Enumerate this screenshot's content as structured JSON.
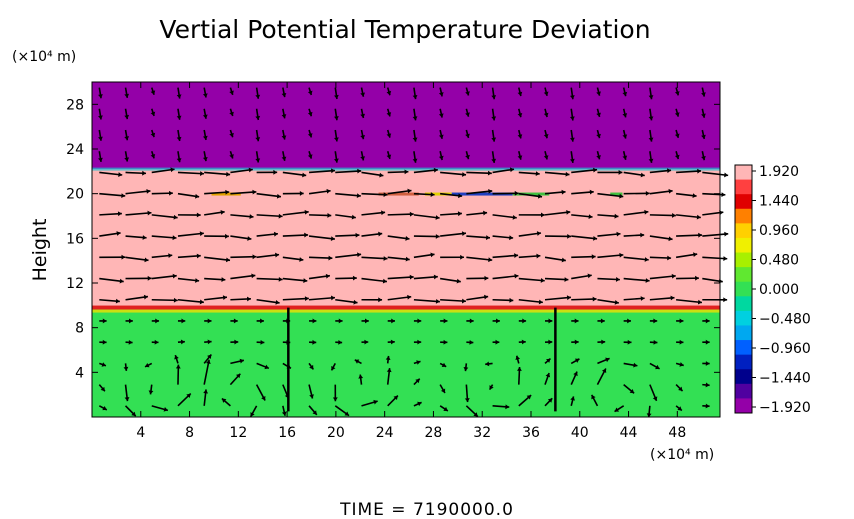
{
  "chart_data": {
    "type": "heatmap",
    "title": "Vertial Potential Temperature Deviation",
    "ylabel": "Height",
    "y_unit": "(×10⁴ m)",
    "x_unit": "(×10⁴ m)",
    "footer": "TIME = 7190000.0",
    "xlim": [
      0,
      51.5
    ],
    "ylim": [
      0,
      30
    ],
    "x_ticks": [
      4,
      8,
      12,
      16,
      20,
      24,
      28,
      32,
      36,
      40,
      44,
      48
    ],
    "y_ticks": [
      4,
      8,
      12,
      16,
      20,
      24,
      28
    ],
    "field_layers": [
      {
        "y_from": 22.2,
        "y_to": 30,
        "value": -1.92,
        "color": "#9400a8"
      },
      {
        "y_from": 9.8,
        "y_to": 22.2,
        "value": 1.92,
        "color": "#ffb6b6"
      },
      {
        "y_from": 0,
        "y_to": 9.8,
        "value": 0.0,
        "color": "#33e054"
      }
    ],
    "colorbar": {
      "ticks": [
        "1.920",
        "1.440",
        "0.960",
        "0.480",
        "0.000",
        "−0.480",
        "−0.960",
        "−1.440",
        "−1.920"
      ],
      "min": -1.92,
      "max": 1.92,
      "colors": [
        "#ffb6b6",
        "#ff4040",
        "#e00000",
        "#ff8000",
        "#ffd000",
        "#f0f000",
        "#a8f000",
        "#60e830",
        "#33e054",
        "#00d8a0",
        "#00d0e0",
        "#00a8f0",
        "#0060ff",
        "#0020c0",
        "#00008c",
        "#5000a0",
        "#9400a8"
      ]
    },
    "vectors": {
      "note": "wind vectors overlaid on the field",
      "cells": [
        {
          "x": 5.5,
          "z": 2.5,
          "sense": "cw"
        },
        {
          "x": 12.0,
          "z": 2.5,
          "sense": "ccw"
        },
        {
          "x": 21.5,
          "z": 2.5,
          "sense": "cw"
        },
        {
          "x": 33.0,
          "z": 2.5,
          "sense": "cw"
        },
        {
          "x": 43.0,
          "z": 2.5,
          "sense": "ccw"
        }
      ]
    }
  }
}
